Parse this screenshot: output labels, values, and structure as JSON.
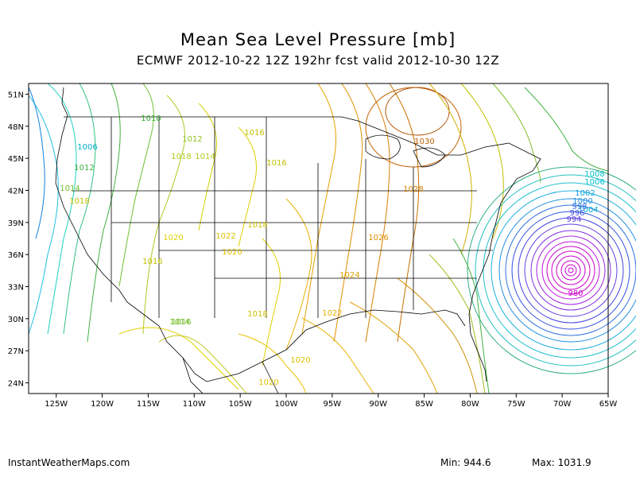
{
  "title": "Mean Sea Level Pressure [mb]",
  "subtitle": "ECMWF 2012-10-22 12Z 192hr fcst valid 2012-10-30 12Z",
  "footer": {
    "site": "InstantWeatherMaps.com",
    "min": "Min:  944.6",
    "max": "Max: 1031.9"
  },
  "map": {
    "lon_range": [
      -128,
      -65
    ],
    "lat_range": [
      23,
      52
    ],
    "lon_ticks": [
      "125W",
      "120W",
      "115W",
      "110W",
      "105W",
      "100W",
      "95W",
      "90W",
      "85W",
      "80W",
      "75W",
      "70W",
      "65W"
    ],
    "lat_ticks": [
      "51N",
      "48N",
      "45N",
      "42N",
      "39N",
      "36N",
      "33N",
      "30N",
      "27N",
      "24N"
    ],
    "contour_labels": [
      "1010",
      "1012",
      "1016",
      "1014",
      "1018",
      "1016",
      "1006",
      "1012",
      "1014",
      "1018",
      "1016",
      "1020",
      "1022",
      "1020",
      "1018",
      "1016",
      "1030",
      "1028",
      "1026",
      "1024",
      "1022",
      "1018",
      "1014",
      "1020",
      "1020",
      "1008",
      "1006",
      "1004",
      "1002",
      "1000",
      "998",
      "996",
      "994",
      "980"
    ]
  },
  "colors": {
    "low_pressure": "#cc00cc",
    "mid_low": "#3050e0",
    "cyan": "#00c0d0",
    "green": "#30b030",
    "yellow": "#e0d000",
    "orange": "#e08000",
    "brown": "#c06000"
  }
}
